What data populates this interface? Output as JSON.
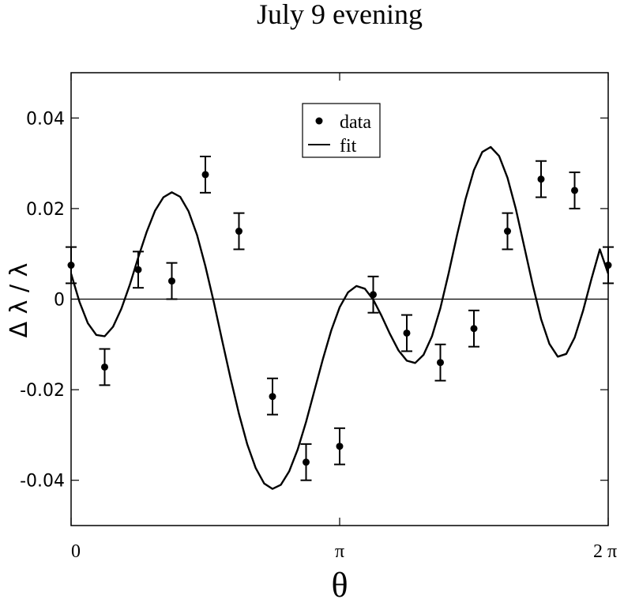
{
  "chart_data": {
    "type": "scatter",
    "title": "July 9 evening",
    "xlabel": "θ",
    "ylabel": "Δ λ / λ",
    "xlim": [
      0,
      6.2832
    ],
    "ylim": [
      -0.05,
      0.05
    ],
    "x_ticks": [
      {
        "value": 0,
        "label": "0"
      },
      {
        "value": 3.1416,
        "label": "π"
      },
      {
        "value": 6.2832,
        "label": "2 π"
      }
    ],
    "y_ticks": [
      {
        "value": 0.04,
        "label": "0.04"
      },
      {
        "value": 0.02,
        "label": "0.02"
      },
      {
        "value": 0,
        "label": "0"
      },
      {
        "value": -0.02,
        "label": "-0.02"
      },
      {
        "value": -0.04,
        "label": "-0.04"
      }
    ],
    "zero_line": true,
    "grid": false,
    "legend": {
      "position": "top-center",
      "entries": [
        {
          "label": "data",
          "marker": "dot"
        },
        {
          "label": "fit",
          "marker": "line"
        }
      ]
    },
    "series": [
      {
        "name": "data",
        "kind": "points",
        "x": [
          0.0,
          0.3927,
          0.7854,
          1.1781,
          1.5708,
          1.9635,
          2.3562,
          2.7489,
          3.1416,
          3.5343,
          3.927,
          4.3197,
          4.7124,
          5.1051,
          5.4978,
          5.8905,
          6.2832
        ],
        "y": [
          0.0075,
          -0.015,
          0.0065,
          0.004,
          0.0275,
          0.015,
          -0.0215,
          -0.036,
          -0.0325,
          0.001,
          -0.0075,
          -0.014,
          -0.0065,
          0.015,
          0.0265,
          0.024,
          0.0075
        ],
        "err": [
          0.004,
          0.004,
          0.004,
          0.004,
          0.004,
          0.004,
          0.004,
          0.004,
          0.004,
          0.004,
          0.004,
          0.004,
          0.004,
          0.004,
          0.004,
          0.004,
          0.004
        ]
      },
      {
        "name": "fit",
        "kind": "line",
        "x": [
          0.0,
          0.0982,
          0.1963,
          0.2945,
          0.3927,
          0.4909,
          0.589,
          0.6872,
          0.7854,
          0.8836,
          0.9817,
          1.0799,
          1.1781,
          1.2763,
          1.3744,
          1.4726,
          1.5708,
          1.669,
          1.7671,
          1.8653,
          1.9635,
          2.0617,
          2.1598,
          2.258,
          2.3562,
          2.4544,
          2.5525,
          2.6507,
          2.7489,
          2.8471,
          2.9452,
          3.0434,
          3.1416,
          3.2398,
          3.3379,
          3.4361,
          3.5343,
          3.6325,
          3.7306,
          3.8288,
          3.927,
          4.0252,
          4.1233,
          4.2215,
          4.3197,
          4.4179,
          4.516,
          4.6142,
          4.7124,
          4.8106,
          4.9087,
          5.0069,
          5.1051,
          5.2033,
          5.3014,
          5.3996,
          5.4978,
          5.596,
          5.6941,
          5.7923,
          5.8905,
          5.9887,
          6.0868,
          6.185,
          6.2832
        ],
        "y": [
          0.0056,
          -0.0006,
          -0.0053,
          -0.0079,
          -0.0082,
          -0.0061,
          -0.0021,
          0.0032,
          0.0092,
          0.0148,
          0.0195,
          0.0225,
          0.0236,
          0.0226,
          0.0194,
          0.0142,
          0.0073,
          -0.0006,
          -0.0091,
          -0.0175,
          -0.0253,
          -0.0321,
          -0.0373,
          -0.0407,
          -0.0419,
          -0.041,
          -0.038,
          -0.0332,
          -0.0271,
          -0.0202,
          -0.0133,
          -0.0069,
          -0.0018,
          0.0015,
          0.0029,
          0.0023,
          -0.0001,
          -0.0037,
          -0.0077,
          -0.0113,
          -0.0136,
          -0.0141,
          -0.0123,
          -0.0082,
          -0.002,
          0.0058,
          0.0142,
          0.0221,
          0.0285,
          0.0325,
          0.0336,
          0.0316,
          0.0268,
          0.0199,
          0.0116,
          0.0032,
          -0.0044,
          -0.0099,
          -0.0127,
          -0.0121,
          -0.0085,
          -0.0026,
          0.0044,
          0.011,
          0.0056
        ]
      }
    ]
  }
}
